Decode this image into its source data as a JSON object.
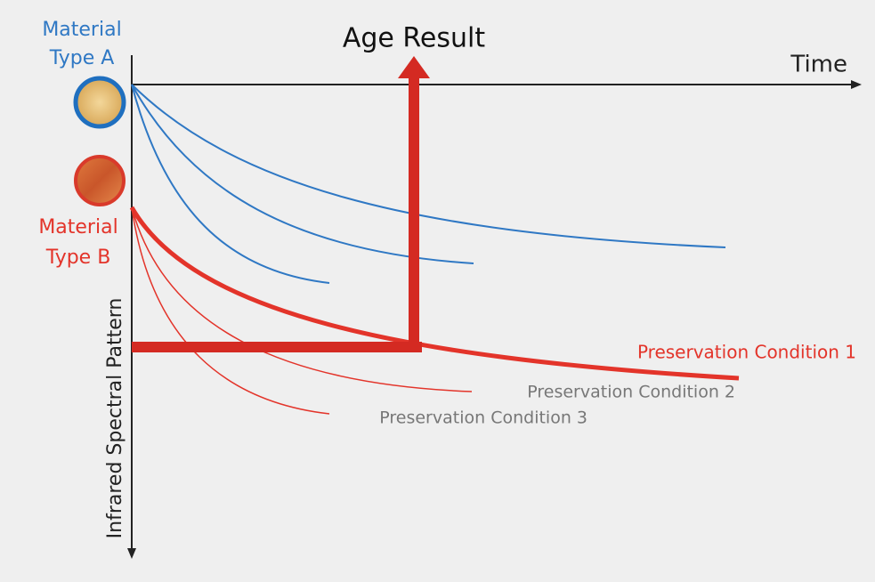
{
  "title": "Age Result",
  "axes": {
    "x_label": "Time",
    "y_label": "Infrared Spectral Pattern"
  },
  "materials": [
    {
      "label_lines": [
        "Material",
        "Type A"
      ]
    },
    {
      "label_lines": [
        "Material",
        "Type B"
      ]
    }
  ],
  "conditions": [
    "Preservation Condition 1",
    "Preservation Condition 2",
    "Preservation Condition 3"
  ]
}
